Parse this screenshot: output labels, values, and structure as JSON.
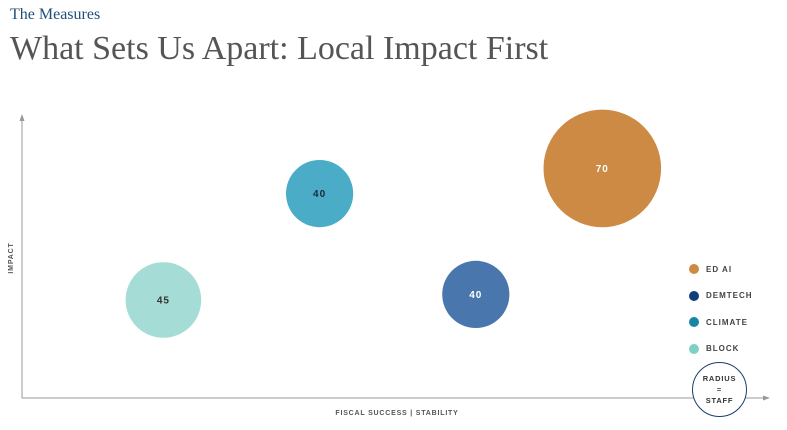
{
  "header": {
    "eyebrow": "The Measures",
    "title": "What Sets Us Apart: Local Impact First"
  },
  "chart_data": {
    "type": "bubble",
    "title": "",
    "xlabel": "FISCAL SUCCESS | STABILITY",
    "ylabel": "IMPACT",
    "grid": false,
    "legend_position": "right",
    "size_note": [
      "RADIUS",
      "=",
      "STAFF"
    ],
    "series": [
      {
        "name": "ED AI",
        "x": 0.78,
        "y": 0.82,
        "size": 70,
        "color": "#cc8a45",
        "label_color": "#ffffff"
      },
      {
        "name": "DEMTECH",
        "x": 0.61,
        "y": 0.37,
        "size": 40,
        "color": "#4a76ae",
        "label_color": "#ffffff"
      },
      {
        "name": "CLIMATE",
        "x": 0.4,
        "y": 0.73,
        "size": 40,
        "color": "#4bacc8",
        "label_color": "#1a2a3a"
      },
      {
        "name": "BLOCK",
        "x": 0.19,
        "y": 0.35,
        "size": 45,
        "color": "#a6dcd6",
        "label_color": "#333333"
      }
    ],
    "legend": [
      {
        "name": "ED AI",
        "color": "#cc8a45"
      },
      {
        "name": "DEMTECH",
        "color": "#0f3e7a"
      },
      {
        "name": "CLIMATE",
        "color": "#1786a6"
      },
      {
        "name": "BLOCK",
        "color": "#7fd0c4"
      }
    ]
  }
}
